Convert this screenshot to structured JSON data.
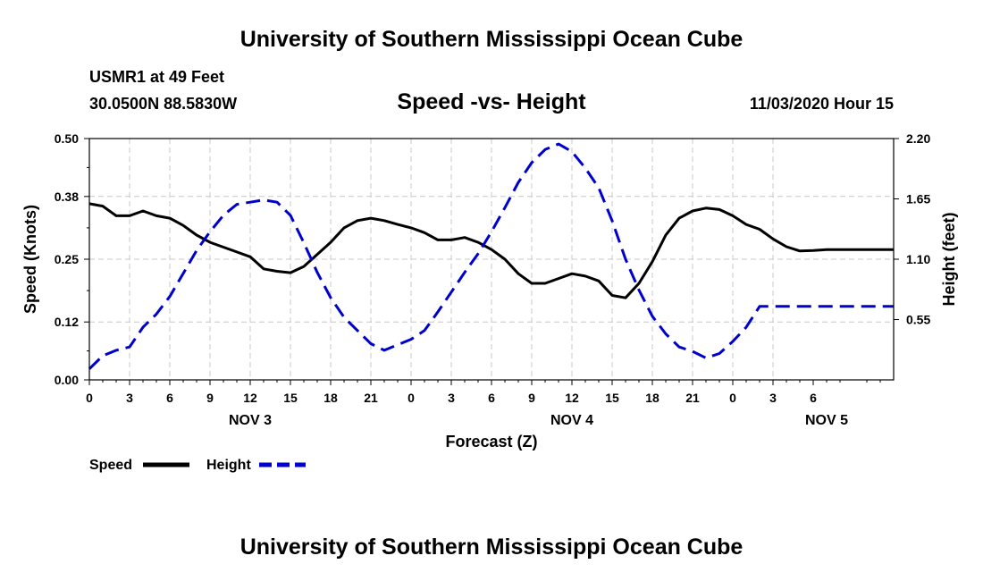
{
  "header": {
    "title": "University of Southern Mississippi Ocean Cube",
    "station": "USMR1 at 49 Feet",
    "coords": "30.0500N 88.5830W",
    "datetime": "11/03/2020 Hour 15"
  },
  "footer": {
    "title": "University of Southern Mississippi Ocean Cube"
  },
  "colors": {
    "speed": "#000000",
    "height": "#0000cc",
    "grid": "#c8c8c8"
  },
  "chart_data": {
    "type": "line",
    "title": "Speed -vs- Height",
    "xlabel": "Forecast (Z)",
    "ylabel_left": "Speed (Knots)",
    "ylabel_right": "Height (feet)",
    "x_range_hours": [
      0,
      60
    ],
    "ylim_left": [
      0,
      0.5
    ],
    "ylim_right": [
      0,
      2.2
    ],
    "left_ticks": [
      "0.00",
      "0.12",
      "0.25",
      "0.38",
      "0.50"
    ],
    "right_ticks": [
      "0.55",
      "1.10",
      "1.65",
      "2.20"
    ],
    "x_tick_labels": [
      "0",
      "3",
      "6",
      "9",
      "12",
      "15",
      "18",
      "21",
      "0",
      "3",
      "6",
      "9",
      "12",
      "15",
      "18",
      "21",
      "0",
      "3",
      "6"
    ],
    "date_labels": [
      {
        "label": "NOV 3",
        "hour": 12
      },
      {
        "label": "NOV 4",
        "hour": 36
      },
      {
        "label": "NOV 5",
        "hour": 55
      }
    ],
    "grid": true,
    "legend": {
      "placement": "bottom-left",
      "entries": [
        "Speed",
        "Height"
      ]
    },
    "series": [
      {
        "name": "Speed",
        "axis": "left",
        "style": "solid",
        "x": [
          0,
          1,
          2,
          3,
          4,
          5,
          6,
          7,
          8,
          9,
          10,
          11,
          12,
          13,
          14,
          15,
          16,
          17,
          18,
          19,
          20,
          21,
          22,
          23,
          24,
          25,
          26,
          27,
          28,
          29,
          30,
          31,
          32,
          33,
          34,
          35,
          36,
          37,
          38,
          39,
          40,
          41,
          42,
          43,
          44,
          45,
          46,
          47,
          48,
          49,
          50,
          51,
          52,
          53,
          54,
          55,
          56,
          57,
          58,
          59,
          60
        ],
        "values": [
          0.365,
          0.36,
          0.34,
          0.34,
          0.35,
          0.34,
          0.335,
          0.32,
          0.3,
          0.285,
          0.275,
          0.265,
          0.255,
          0.23,
          0.225,
          0.222,
          0.235,
          0.26,
          0.285,
          0.315,
          0.33,
          0.335,
          0.33,
          0.322,
          0.315,
          0.305,
          0.29,
          0.29,
          0.295,
          0.285,
          0.27,
          0.25,
          0.22,
          0.2,
          0.2,
          0.21,
          0.22,
          0.215,
          0.205,
          0.175,
          0.17,
          0.2,
          0.245,
          0.3,
          0.335,
          0.35,
          0.356,
          0.353,
          0.34,
          0.322,
          0.312,
          0.292,
          0.276,
          0.267,
          0.268,
          0.27,
          0.27,
          0.27,
          0.27,
          0.27,
          0.27
        ]
      },
      {
        "name": "Height",
        "axis": "right",
        "style": "dashed",
        "x": [
          0,
          1,
          2,
          3,
          4,
          5,
          6,
          7,
          8,
          9,
          10,
          11,
          12,
          13,
          14,
          15,
          16,
          17,
          18,
          19,
          20,
          21,
          22,
          23,
          24,
          25,
          26,
          27,
          28,
          29,
          30,
          31,
          32,
          33,
          34,
          35,
          36,
          37,
          38,
          39,
          40,
          41,
          42,
          43,
          44,
          45,
          46,
          47,
          48,
          49,
          50,
          51,
          52,
          53,
          54,
          55,
          56,
          57,
          58,
          59,
          60
        ],
        "values": [
          0.1,
          0.22,
          0.27,
          0.3,
          0.48,
          0.6,
          0.76,
          0.97,
          1.18,
          1.35,
          1.5,
          1.6,
          1.62,
          1.64,
          1.62,
          1.5,
          1.25,
          0.98,
          0.75,
          0.57,
          0.45,
          0.33,
          0.27,
          0.32,
          0.37,
          0.45,
          0.62,
          0.8,
          0.98,
          1.15,
          1.35,
          1.57,
          1.8,
          1.98,
          2.1,
          2.15,
          2.08,
          1.93,
          1.75,
          1.45,
          1.1,
          0.82,
          0.58,
          0.42,
          0.3,
          0.26,
          0.2,
          0.24,
          0.35,
          0.48,
          0.67,
          0.67,
          0.67,
          0.67,
          0.67,
          0.67,
          0.67,
          0.67,
          0.67,
          0.67,
          0.67
        ]
      }
    ]
  }
}
